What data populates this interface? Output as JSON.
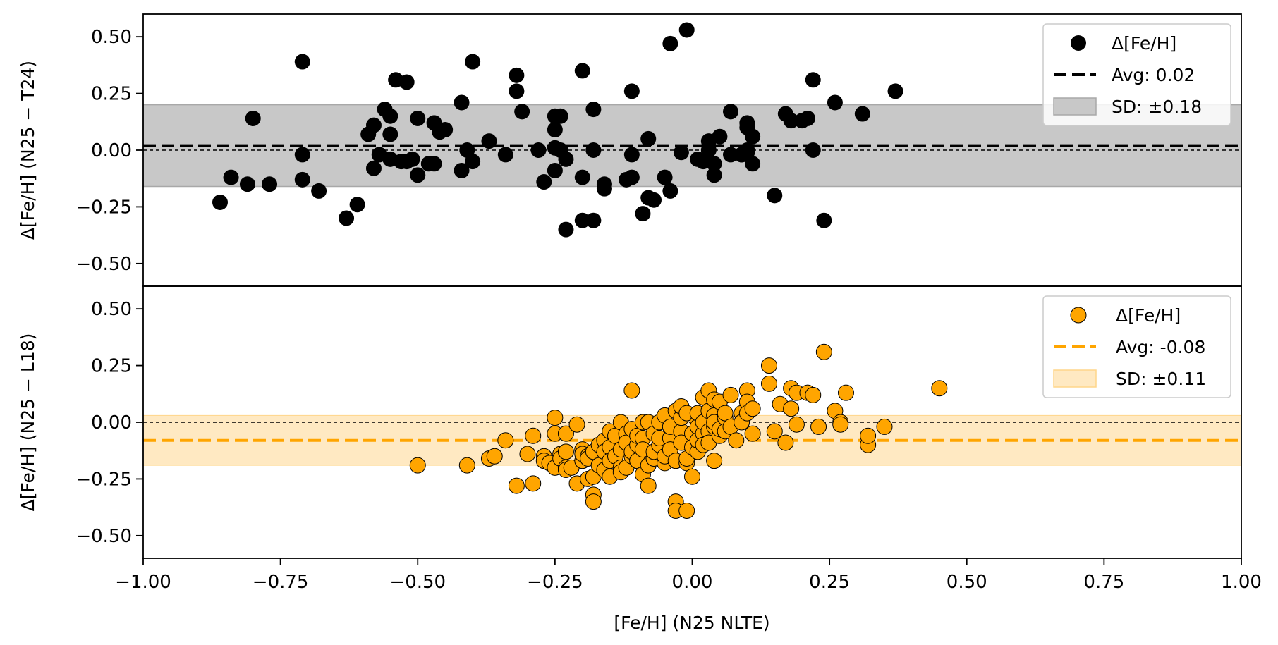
{
  "chart_data": [
    {
      "type": "scatter",
      "panel": "top",
      "ylabel": "Δ[Fe/H] (N25 − T24)",
      "ylim": [
        -0.6,
        0.6
      ],
      "xlim": [
        -1.0,
        1.0
      ],
      "yticks": [
        -0.5,
        -0.25,
        0.0,
        0.25,
        0.5
      ],
      "ytick_labels": [
        "−0.50",
        "−0.25",
        "0.00",
        "0.25",
        "0.50"
      ],
      "marker_color": "#000000",
      "avg": 0.02,
      "sd_band": [
        -0.16,
        0.2
      ],
      "zero_line": 0.0,
      "legend": {
        "position": "top-right",
        "items": [
          {
            "kind": "marker",
            "label": "Δ[Fe/H]"
          },
          {
            "kind": "line",
            "label": "Avg: 0.02"
          },
          {
            "kind": "band",
            "label": "SD: ±0.18"
          }
        ]
      },
      "legend_colors": {
        "marker": "#000000",
        "band": "#c8c8c8"
      },
      "points": [
        [
          -0.86,
          -0.23
        ],
        [
          -0.84,
          -0.12
        ],
        [
          -0.81,
          -0.15
        ],
        [
          -0.8,
          0.14
        ],
        [
          -0.77,
          -0.15
        ],
        [
          -0.71,
          0.39
        ],
        [
          -0.71,
          -0.02
        ],
        [
          -0.71,
          -0.13
        ],
        [
          -0.68,
          -0.18
        ],
        [
          -0.63,
          -0.3
        ],
        [
          -0.61,
          -0.24
        ],
        [
          -0.59,
          0.07
        ],
        [
          -0.58,
          -0.08
        ],
        [
          -0.58,
          0.11
        ],
        [
          -0.57,
          -0.02
        ],
        [
          -0.56,
          0.18
        ],
        [
          -0.55,
          0.15
        ],
        [
          -0.55,
          0.07
        ],
        [
          -0.54,
          0.31
        ],
        [
          -0.55,
          -0.04
        ],
        [
          -0.53,
          -0.05
        ],
        [
          -0.52,
          0.3
        ],
        [
          -0.52,
          -0.05
        ],
        [
          -0.51,
          -0.04
        ],
        [
          -0.5,
          0.14
        ],
        [
          -0.5,
          -0.11
        ],
        [
          -0.48,
          -0.06
        ],
        [
          -0.47,
          0.12
        ],
        [
          -0.47,
          -0.06
        ],
        [
          -0.46,
          0.08
        ],
        [
          -0.45,
          0.09
        ],
        [
          -0.42,
          0.21
        ],
        [
          -0.42,
          -0.09
        ],
        [
          -0.41,
          0.0
        ],
        [
          -0.4,
          0.39
        ],
        [
          -0.4,
          -0.05
        ],
        [
          -0.37,
          0.04
        ],
        [
          -0.34,
          -0.02
        ],
        [
          -0.32,
          0.33
        ],
        [
          -0.32,
          0.26
        ],
        [
          -0.31,
          0.17
        ],
        [
          -0.28,
          0.0
        ],
        [
          -0.27,
          -0.14
        ],
        [
          -0.25,
          0.15
        ],
        [
          -0.25,
          0.09
        ],
        [
          -0.25,
          0.01
        ],
        [
          -0.25,
          -0.09
        ],
        [
          -0.24,
          0.15
        ],
        [
          -0.24,
          0.0
        ],
        [
          -0.23,
          -0.04
        ],
        [
          -0.23,
          -0.35
        ],
        [
          -0.2,
          0.35
        ],
        [
          -0.2,
          -0.12
        ],
        [
          -0.2,
          -0.31
        ],
        [
          -0.18,
          0.18
        ],
        [
          -0.18,
          0.0
        ],
        [
          -0.18,
          -0.31
        ],
        [
          -0.16,
          -0.15
        ],
        [
          -0.16,
          -0.17
        ],
        [
          -0.12,
          -0.13
        ],
        [
          -0.11,
          -0.12
        ],
        [
          -0.11,
          -0.02
        ],
        [
          -0.11,
          0.26
        ],
        [
          -0.09,
          -0.28
        ],
        [
          -0.08,
          -0.21
        ],
        [
          -0.08,
          0.05
        ],
        [
          -0.07,
          -0.22
        ],
        [
          -0.05,
          -0.12
        ],
        [
          -0.04,
          -0.18
        ],
        [
          -0.04,
          0.47
        ],
        [
          -0.02,
          -0.01
        ],
        [
          -0.01,
          0.53
        ],
        [
          0.01,
          -0.04
        ],
        [
          0.02,
          -0.05
        ],
        [
          0.03,
          0.04
        ],
        [
          0.03,
          0.0
        ],
        [
          0.04,
          -0.11
        ],
        [
          0.04,
          -0.06
        ],
        [
          0.05,
          0.06
        ],
        [
          0.07,
          -0.02
        ],
        [
          0.07,
          0.17
        ],
        [
          0.09,
          -0.02
        ],
        [
          0.09,
          -0.02
        ],
        [
          0.1,
          0.12
        ],
        [
          0.1,
          0.1
        ],
        [
          0.1,
          -0.01
        ],
        [
          0.1,
          0.0
        ],
        [
          0.11,
          -0.06
        ],
        [
          0.11,
          0.06
        ],
        [
          0.15,
          -0.2
        ],
        [
          0.17,
          0.16
        ],
        [
          0.18,
          0.13
        ],
        [
          0.2,
          0.13
        ],
        [
          0.21,
          0.14
        ],
        [
          0.22,
          0.31
        ],
        [
          0.22,
          0.0
        ],
        [
          0.24,
          -0.31
        ],
        [
          0.26,
          0.21
        ],
        [
          0.31,
          0.16
        ],
        [
          0.37,
          0.26
        ]
      ]
    },
    {
      "type": "scatter",
      "panel": "bottom",
      "ylabel": "Δ[Fe/H] (N25 − L18)",
      "xlabel": "[Fe/H] (N25 NLTE)",
      "ylim": [
        -0.6,
        0.6
      ],
      "xlim": [
        -1.0,
        1.0
      ],
      "yticks": [
        -0.5,
        -0.25,
        0.0,
        0.25,
        0.5
      ],
      "ytick_labels": [
        "−0.50",
        "−0.25",
        "0.00",
        "0.25",
        "0.50"
      ],
      "xticks": [
        -1.0,
        -0.75,
        -0.5,
        -0.25,
        0.0,
        0.25,
        0.5,
        0.75,
        1.0
      ],
      "xtick_labels": [
        "−1.00",
        "−0.75",
        "−0.50",
        "−0.25",
        "0.00",
        "0.25",
        "0.50",
        "0.75",
        "1.00"
      ],
      "marker_color": "#ffa500",
      "avg": -0.08,
      "sd_band": [
        -0.19,
        0.03
      ],
      "zero_line": 0.0,
      "legend": {
        "position": "top-right",
        "items": [
          {
            "kind": "marker",
            "label": "Δ[Fe/H]"
          },
          {
            "kind": "line",
            "label": "Avg: -0.08"
          },
          {
            "kind": "band",
            "label": "SD: ±0.11"
          }
        ]
      },
      "legend_colors": {
        "marker": "#ffa500",
        "band": "#ffe9c2"
      },
      "points": [
        [
          -0.5,
          -0.19
        ],
        [
          -0.41,
          -0.19
        ],
        [
          -0.37,
          -0.16
        ],
        [
          -0.36,
          -0.15
        ],
        [
          -0.34,
          -0.08
        ],
        [
          -0.32,
          -0.28
        ],
        [
          -0.3,
          -0.14
        ],
        [
          -0.29,
          -0.06
        ],
        [
          -0.29,
          -0.27
        ],
        [
          -0.27,
          -0.15
        ],
        [
          -0.27,
          -0.17
        ],
        [
          -0.26,
          -0.18
        ],
        [
          -0.25,
          -0.2
        ],
        [
          -0.25,
          0.02
        ],
        [
          -0.25,
          -0.05
        ],
        [
          -0.24,
          -0.14
        ],
        [
          -0.24,
          -0.16
        ],
        [
          -0.23,
          -0.13
        ],
        [
          -0.23,
          -0.05
        ],
        [
          -0.23,
          -0.2
        ],
        [
          -0.23,
          -0.21
        ],
        [
          -0.22,
          -0.2
        ],
        [
          -0.21,
          -0.27
        ],
        [
          -0.21,
          -0.01
        ],
        [
          -0.2,
          -0.12
        ],
        [
          -0.2,
          -0.17
        ],
        [
          -0.2,
          -0.14
        ],
        [
          -0.19,
          -0.15
        ],
        [
          -0.19,
          -0.25
        ],
        [
          -0.19,
          -0.16
        ],
        [
          -0.18,
          -0.24
        ],
        [
          -0.18,
          -0.13
        ],
        [
          -0.18,
          -0.32
        ],
        [
          -0.18,
          -0.35
        ],
        [
          -0.17,
          -0.19
        ],
        [
          -0.17,
          -0.1
        ],
        [
          -0.16,
          -0.21
        ],
        [
          -0.16,
          -0.08
        ],
        [
          -0.16,
          -0.13
        ],
        [
          -0.15,
          -0.04
        ],
        [
          -0.15,
          -0.11
        ],
        [
          -0.15,
          -0.17
        ],
        [
          -0.15,
          -0.24
        ],
        [
          -0.14,
          -0.06
        ],
        [
          -0.14,
          -0.15
        ],
        [
          -0.13,
          -0.2
        ],
        [
          -0.13,
          0.0
        ],
        [
          -0.13,
          -0.12
        ],
        [
          -0.13,
          -0.22
        ],
        [
          -0.12,
          -0.05
        ],
        [
          -0.12,
          -0.09
        ],
        [
          -0.12,
          -0.2
        ],
        [
          -0.11,
          -0.03
        ],
        [
          -0.11,
          -0.15
        ],
        [
          -0.11,
          -0.13
        ],
        [
          -0.11,
          0.14
        ],
        [
          -0.1,
          -0.1
        ],
        [
          -0.1,
          -0.17
        ],
        [
          -0.1,
          -0.06
        ],
        [
          -0.09,
          -0.07
        ],
        [
          -0.09,
          -0.23
        ],
        [
          -0.09,
          -0.12
        ],
        [
          -0.09,
          0.0
        ],
        [
          -0.08,
          -0.28
        ],
        [
          -0.08,
          -0.19
        ],
        [
          -0.08,
          0.0
        ],
        [
          -0.07,
          -0.16
        ],
        [
          -0.07,
          -0.05
        ],
        [
          -0.07,
          -0.13
        ],
        [
          -0.06,
          0.0
        ],
        [
          -0.06,
          -0.1
        ],
        [
          -0.06,
          -0.07
        ],
        [
          -0.05,
          -0.18
        ],
        [
          -0.05,
          0.03
        ],
        [
          -0.05,
          -0.15
        ],
        [
          -0.04,
          -0.07
        ],
        [
          -0.04,
          -0.12
        ],
        [
          -0.04,
          -0.02
        ],
        [
          -0.03,
          0.05
        ],
        [
          -0.03,
          -0.35
        ],
        [
          -0.03,
          -0.39
        ],
        [
          -0.03,
          -0.17
        ],
        [
          -0.02,
          -0.04
        ],
        [
          -0.02,
          0.02
        ],
        [
          -0.02,
          -0.09
        ],
        [
          -0.02,
          0.07
        ],
        [
          -0.01,
          -0.39
        ],
        [
          -0.01,
          -0.18
        ],
        [
          -0.01,
          -0.16
        ],
        [
          -0.01,
          0.04
        ],
        [
          0.0,
          -0.24
        ],
        [
          0.0,
          -0.05
        ],
        [
          0.0,
          -0.11
        ],
        [
          0.01,
          0.0
        ],
        [
          0.01,
          -0.02
        ],
        [
          0.01,
          -0.13
        ],
        [
          0.01,
          0.04
        ],
        [
          0.01,
          -0.08
        ],
        [
          0.02,
          0.11
        ],
        [
          0.02,
          -0.05
        ],
        [
          0.02,
          -0.1
        ],
        [
          0.02,
          0.0
        ],
        [
          0.03,
          0.14
        ],
        [
          0.03,
          -0.04
        ],
        [
          0.03,
          -0.09
        ],
        [
          0.03,
          0.05
        ],
        [
          0.04,
          0.03
        ],
        [
          0.04,
          -0.02
        ],
        [
          0.04,
          -0.17
        ],
        [
          0.04,
          0.1
        ],
        [
          0.04,
          0.0
        ],
        [
          0.05,
          -0.06
        ],
        [
          0.05,
          0.09
        ],
        [
          0.05,
          -0.03
        ],
        [
          0.06,
          0.02
        ],
        [
          0.06,
          -0.04
        ],
        [
          0.06,
          0.04
        ],
        [
          0.07,
          -0.02
        ],
        [
          0.07,
          0.12
        ],
        [
          0.08,
          -0.08
        ],
        [
          0.09,
          0.04
        ],
        [
          0.09,
          0.0
        ],
        [
          0.1,
          0.14
        ],
        [
          0.1,
          0.09
        ],
        [
          0.1,
          0.04
        ],
        [
          0.11,
          -0.05
        ],
        [
          0.11,
          0.06
        ],
        [
          0.14,
          0.25
        ],
        [
          0.14,
          0.17
        ],
        [
          0.15,
          -0.04
        ],
        [
          0.16,
          0.08
        ],
        [
          0.17,
          -0.09
        ],
        [
          0.18,
          0.15
        ],
        [
          0.18,
          0.06
        ],
        [
          0.19,
          0.13
        ],
        [
          0.19,
          -0.01
        ],
        [
          0.21,
          0.13
        ],
        [
          0.22,
          0.12
        ],
        [
          0.23,
          -0.02
        ],
        [
          0.24,
          0.31
        ],
        [
          0.26,
          0.05
        ],
        [
          0.27,
          0.0
        ],
        [
          0.27,
          -0.01
        ],
        [
          0.28,
          0.13
        ],
        [
          0.32,
          -0.1
        ],
        [
          0.32,
          -0.06
        ],
        [
          0.35,
          -0.02
        ],
        [
          0.45,
          0.15
        ]
      ]
    }
  ]
}
